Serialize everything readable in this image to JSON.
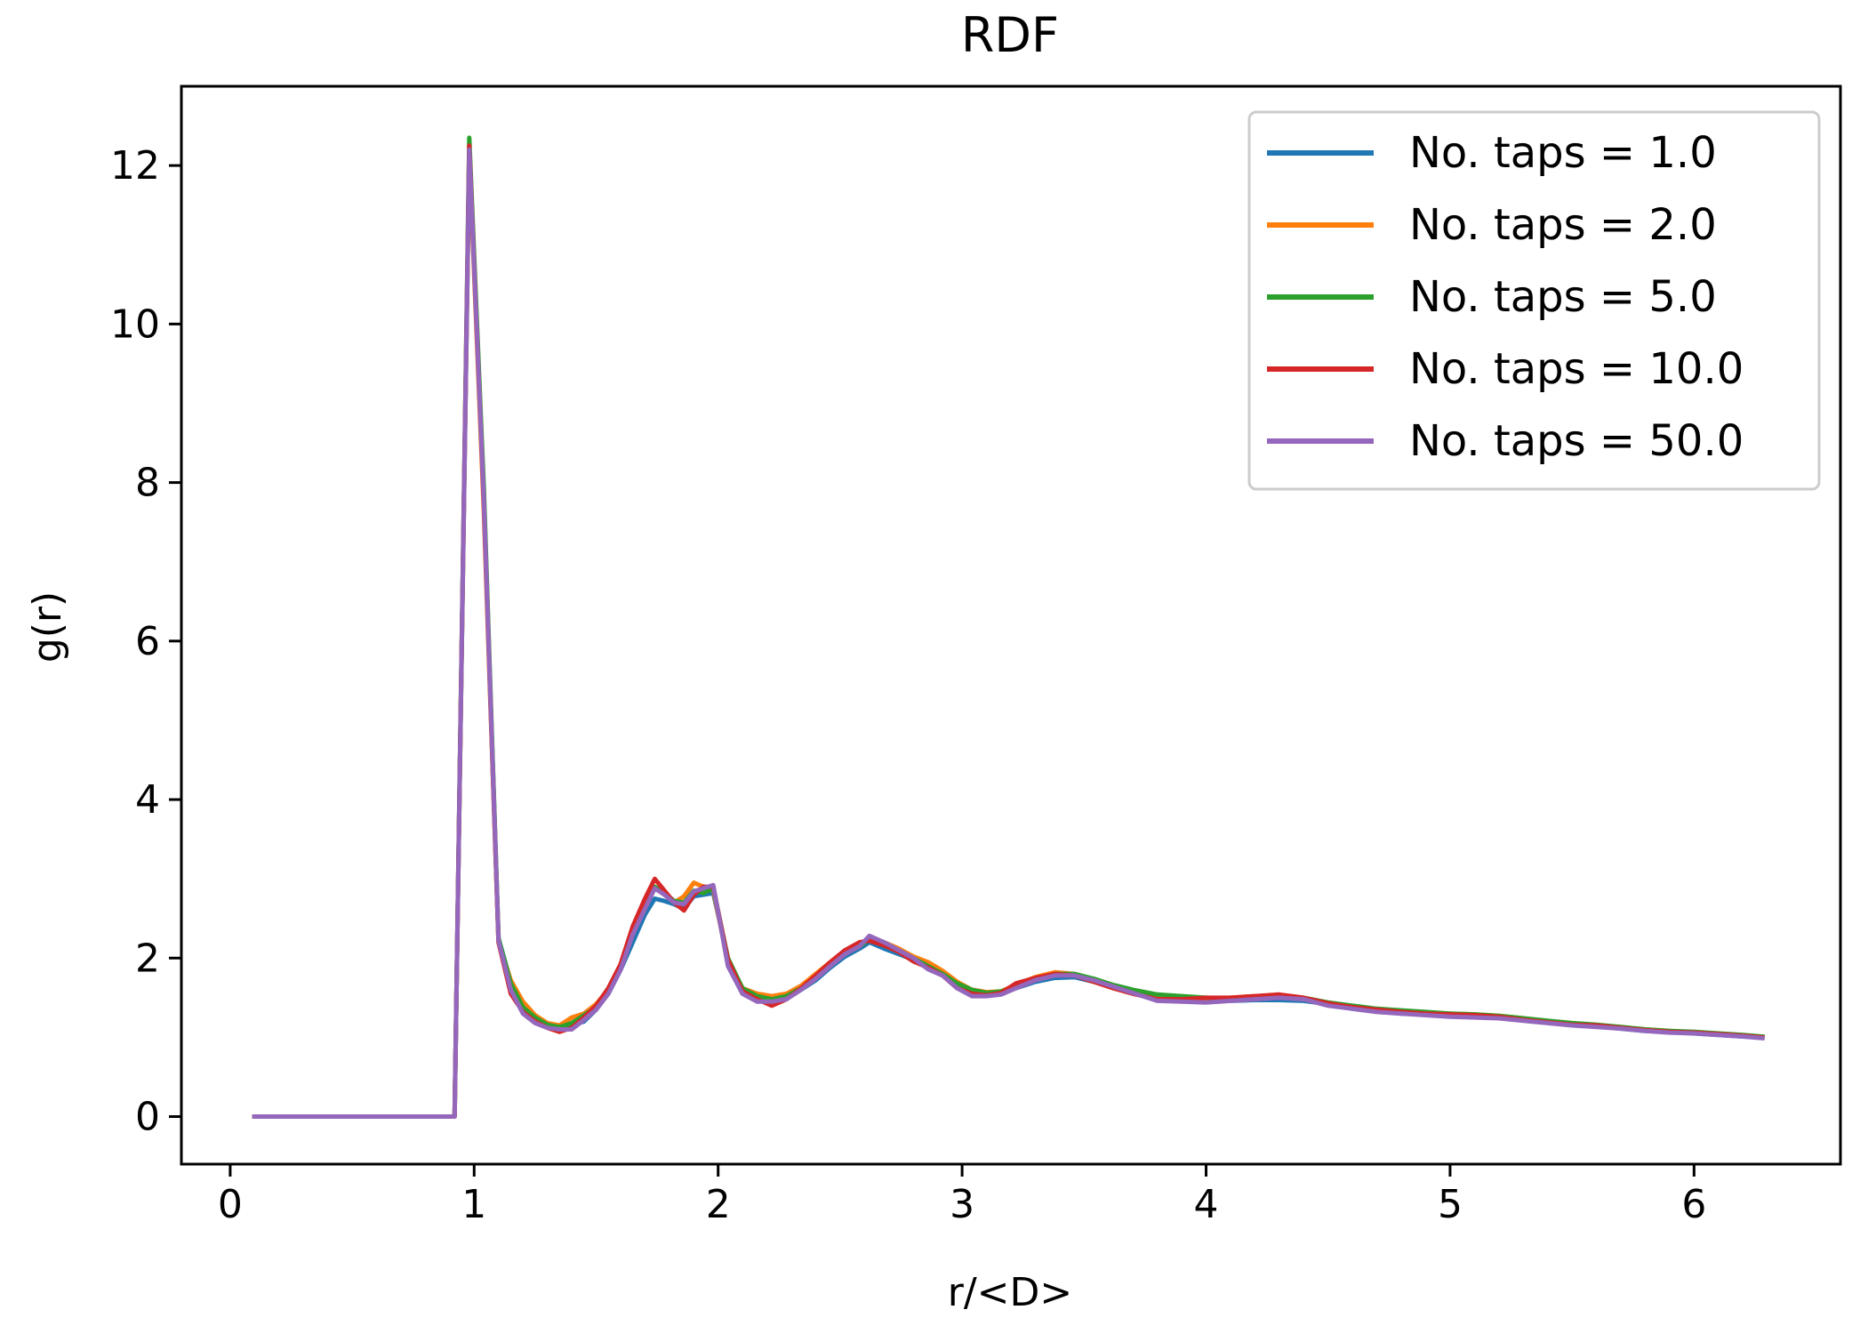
{
  "chart_data": {
    "type": "line",
    "title": "RDF",
    "xlabel": "r/<D>",
    "ylabel": "g(r)",
    "xlim": [
      -0.2,
      6.6
    ],
    "ylim": [
      -0.6,
      13.0
    ],
    "xticks": [
      0,
      1,
      2,
      3,
      4,
      5,
      6
    ],
    "xtick_labels": [
      "0",
      "1",
      "2",
      "3",
      "4",
      "5",
      "6"
    ],
    "yticks": [
      0,
      2,
      4,
      6,
      8,
      10,
      12
    ],
    "ytick_labels": [
      "0",
      "2",
      "4",
      "6",
      "8",
      "10",
      "12"
    ],
    "grid": false,
    "legend_position": "top-right",
    "x": [
      0.1,
      0.2,
      0.3,
      0.4,
      0.5,
      0.6,
      0.7,
      0.8,
      0.9,
      0.92,
      0.98,
      1.04,
      1.1,
      1.15,
      1.2,
      1.25,
      1.3,
      1.35,
      1.4,
      1.45,
      1.5,
      1.55,
      1.6,
      1.65,
      1.7,
      1.74,
      1.78,
      1.82,
      1.86,
      1.9,
      1.94,
      1.98,
      2.04,
      2.1,
      2.16,
      2.22,
      2.28,
      2.34,
      2.4,
      2.46,
      2.52,
      2.58,
      2.62,
      2.68,
      2.74,
      2.8,
      2.86,
      2.92,
      2.98,
      3.04,
      3.1,
      3.16,
      3.22,
      3.3,
      3.38,
      3.46,
      3.54,
      3.62,
      3.7,
      3.8,
      3.9,
      4.0,
      4.1,
      4.2,
      4.3,
      4.4,
      4.5,
      4.6,
      4.7,
      4.8,
      4.9,
      5.0,
      5.1,
      5.2,
      5.3,
      5.4,
      5.5,
      5.6,
      5.7,
      5.8,
      5.9,
      6.0,
      6.1,
      6.2,
      6.28
    ],
    "series": [
      {
        "name": "No. taps = 1.0",
        "color": "#1f77b4",
        "values": [
          0,
          0,
          0,
          0,
          0,
          0,
          0,
          0,
          0,
          0,
          12.1,
          7.8,
          2.25,
          1.7,
          1.35,
          1.22,
          1.15,
          1.12,
          1.15,
          1.2,
          1.35,
          1.55,
          1.85,
          2.2,
          2.55,
          2.75,
          2.72,
          2.68,
          2.62,
          2.78,
          2.8,
          2.82,
          2.0,
          1.6,
          1.48,
          1.45,
          1.5,
          1.6,
          1.72,
          1.88,
          2.02,
          2.12,
          2.2,
          2.12,
          2.05,
          1.98,
          1.88,
          1.8,
          1.65,
          1.58,
          1.55,
          1.56,
          1.62,
          1.7,
          1.75,
          1.76,
          1.7,
          1.64,
          1.56,
          1.5,
          1.47,
          1.45,
          1.46,
          1.47,
          1.47,
          1.46,
          1.42,
          1.36,
          1.33,
          1.3,
          1.29,
          1.28,
          1.27,
          1.26,
          1.23,
          1.19,
          1.16,
          1.14,
          1.11,
          1.08,
          1.07,
          1.05,
          1.03,
          1.01,
          1.0
        ]
      },
      {
        "name": "No. taps = 2.0",
        "color": "#ff7f0e",
        "values": [
          0,
          0,
          0,
          0,
          0,
          0,
          0,
          0,
          0,
          0,
          12.15,
          7.6,
          2.2,
          1.72,
          1.45,
          1.28,
          1.18,
          1.15,
          1.25,
          1.3,
          1.42,
          1.6,
          1.88,
          2.3,
          2.65,
          2.9,
          2.8,
          2.7,
          2.78,
          2.95,
          2.9,
          2.86,
          1.95,
          1.62,
          1.55,
          1.52,
          1.55,
          1.65,
          1.8,
          1.95,
          2.08,
          2.18,
          2.25,
          2.2,
          2.12,
          2.02,
          1.95,
          1.84,
          1.7,
          1.6,
          1.57,
          1.58,
          1.66,
          1.76,
          1.82,
          1.8,
          1.72,
          1.62,
          1.56,
          1.52,
          1.5,
          1.48,
          1.5,
          1.52,
          1.52,
          1.48,
          1.42,
          1.38,
          1.35,
          1.33,
          1.31,
          1.3,
          1.29,
          1.27,
          1.24,
          1.2,
          1.17,
          1.15,
          1.12,
          1.1,
          1.08,
          1.06,
          1.04,
          1.02,
          1.0
        ]
      },
      {
        "name": "No. taps = 5.0",
        "color": "#2ca02c",
        "values": [
          0,
          0,
          0,
          0,
          0,
          0,
          0,
          0,
          0,
          0,
          12.35,
          7.9,
          2.25,
          1.68,
          1.38,
          1.25,
          1.16,
          1.13,
          1.18,
          1.28,
          1.38,
          1.58,
          1.9,
          2.32,
          2.7,
          2.9,
          2.82,
          2.72,
          2.7,
          2.85,
          2.82,
          2.88,
          2.0,
          1.62,
          1.52,
          1.48,
          1.52,
          1.62,
          1.76,
          1.92,
          2.05,
          2.15,
          2.24,
          2.18,
          2.1,
          2.0,
          1.9,
          1.8,
          1.68,
          1.6,
          1.56,
          1.58,
          1.64,
          1.73,
          1.8,
          1.8,
          1.74,
          1.66,
          1.6,
          1.54,
          1.52,
          1.5,
          1.48,
          1.5,
          1.52,
          1.5,
          1.44,
          1.4,
          1.36,
          1.34,
          1.32,
          1.3,
          1.29,
          1.27,
          1.24,
          1.21,
          1.18,
          1.16,
          1.13,
          1.1,
          1.08,
          1.07,
          1.05,
          1.03,
          1.01
        ]
      },
      {
        "name": "No. taps = 10.0",
        "color": "#d62728",
        "values": [
          0,
          0,
          0,
          0,
          0,
          0,
          0,
          0,
          0,
          0,
          12.25,
          7.7,
          2.2,
          1.55,
          1.32,
          1.2,
          1.12,
          1.07,
          1.12,
          1.25,
          1.4,
          1.62,
          1.92,
          2.4,
          2.75,
          3.0,
          2.85,
          2.7,
          2.6,
          2.8,
          2.9,
          2.9,
          1.98,
          1.58,
          1.48,
          1.4,
          1.48,
          1.62,
          1.78,
          1.95,
          2.1,
          2.2,
          2.22,
          2.16,
          2.08,
          1.96,
          1.88,
          1.78,
          1.62,
          1.55,
          1.53,
          1.56,
          1.68,
          1.75,
          1.8,
          1.78,
          1.7,
          1.62,
          1.55,
          1.48,
          1.48,
          1.5,
          1.5,
          1.52,
          1.54,
          1.5,
          1.43,
          1.38,
          1.35,
          1.32,
          1.3,
          1.29,
          1.28,
          1.26,
          1.22,
          1.19,
          1.16,
          1.15,
          1.12,
          1.09,
          1.07,
          1.06,
          1.04,
          1.02,
          1.0
        ]
      },
      {
        "name": "No. taps = 50.0",
        "color": "#9467bd",
        "values": [
          0,
          0,
          0,
          0,
          0,
          0,
          0,
          0,
          0,
          0,
          12.2,
          7.75,
          2.22,
          1.6,
          1.3,
          1.18,
          1.12,
          1.1,
          1.1,
          1.22,
          1.35,
          1.55,
          1.85,
          2.3,
          2.62,
          2.88,
          2.8,
          2.7,
          2.68,
          2.84,
          2.88,
          2.92,
          1.9,
          1.55,
          1.45,
          1.45,
          1.48,
          1.6,
          1.74,
          1.9,
          2.05,
          2.15,
          2.28,
          2.2,
          2.1,
          2.0,
          1.86,
          1.78,
          1.62,
          1.52,
          1.52,
          1.54,
          1.62,
          1.72,
          1.78,
          1.78,
          1.72,
          1.64,
          1.56,
          1.46,
          1.45,
          1.44,
          1.46,
          1.48,
          1.5,
          1.48,
          1.4,
          1.36,
          1.32,
          1.3,
          1.28,
          1.26,
          1.25,
          1.24,
          1.21,
          1.18,
          1.15,
          1.13,
          1.11,
          1.08,
          1.06,
          1.05,
          1.03,
          1.01,
          0.99
        ]
      }
    ]
  }
}
